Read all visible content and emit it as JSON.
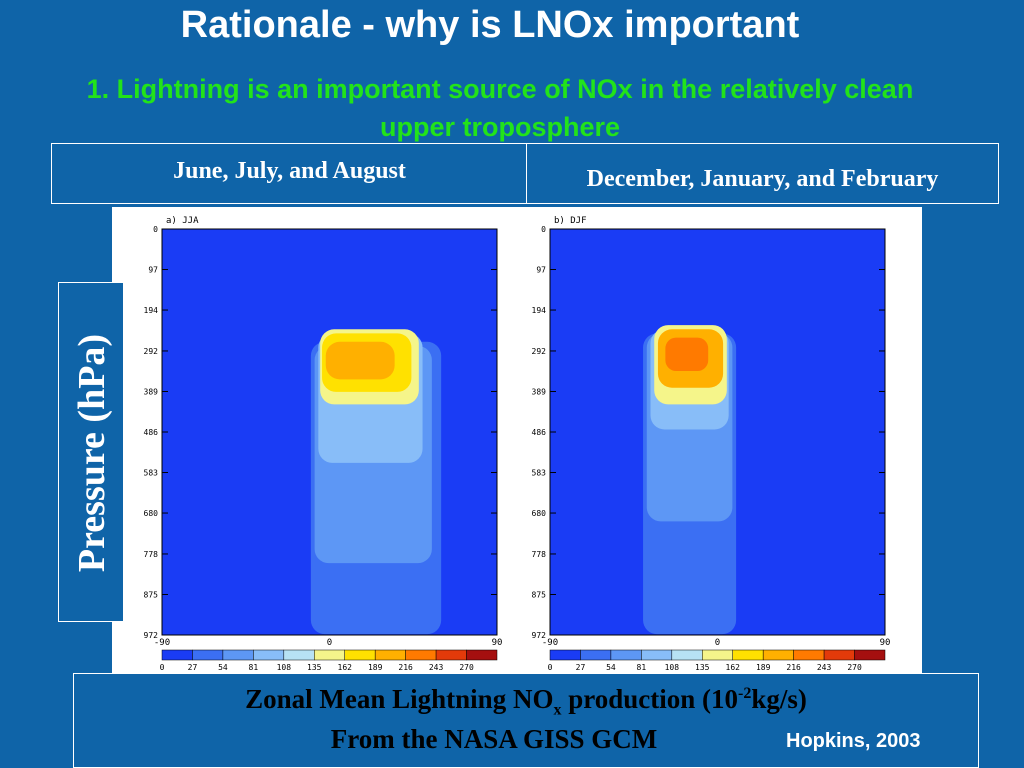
{
  "slide": {
    "title": "Rationale - why is LNOx important",
    "subtitle": "1.  Lightning is an important source of NOx in the relatively clean upper troposphere",
    "season_left": "June, July, and August",
    "season_right": "December, January, and February",
    "y_axis_label": "Pressure (hPa)",
    "caption_line1_pre": "Zonal Mean Lightning NO",
    "caption_line1_sub": "x",
    "caption_line1_mid": " production (10",
    "caption_line1_sup": "-2",
    "caption_line1_post": "kg/s)",
    "caption_line2": "From the NASA GISS GCM",
    "credit": "Hopkins, 2003"
  },
  "colors": {
    "background": "#0f64a8",
    "subtitle_green": "#22e31a",
    "plot_background": "#1a3cf5"
  },
  "chart_data": [
    {
      "type": "heatmap",
      "panel_label": "a) JJA",
      "xlim": [
        -90,
        90
      ],
      "x_ticks": [
        "-90",
        "0",
        "90"
      ],
      "y_ticks": [
        "0",
        "97",
        "194",
        "292",
        "389",
        "486",
        "583",
        "680",
        "778",
        "875",
        "972"
      ],
      "ylim": [
        0,
        972
      ],
      "colorbar_levels": [
        "0",
        "27",
        "54",
        "81",
        "108",
        "135",
        "162",
        "189",
        "216",
        "243",
        "270"
      ],
      "colorbar_colors": [
        "#1a3cf5",
        "#3b6ff3",
        "#5d97f5",
        "#88bdf8",
        "#b7e2f4",
        "#f5f58a",
        "#ffe100",
        "#ffb000",
        "#ff7a00",
        "#e33a0a",
        "#a50f0f"
      ],
      "regions": [
        {
          "lat": [
            -10,
            60
          ],
          "p": [
            270,
            970
          ],
          "value": 30
        },
        {
          "lat": [
            -8,
            55
          ],
          "p": [
            280,
            800
          ],
          "value": 60
        },
        {
          "lat": [
            -6,
            50
          ],
          "p": [
            250,
            560
          ],
          "value": 100
        },
        {
          "lat": [
            -5,
            48
          ],
          "p": [
            240,
            420
          ],
          "value": 140
        },
        {
          "lat": [
            -4,
            44
          ],
          "p": [
            250,
            390
          ],
          "value": 175
        },
        {
          "lat": [
            -2,
            35
          ],
          "p": [
            270,
            360
          ],
          "value": 200
        }
      ]
    },
    {
      "type": "heatmap",
      "panel_label": "b) DJF",
      "xlim": [
        -90,
        90
      ],
      "x_ticks": [
        "-90",
        "0",
        "90"
      ],
      "y_ticks": [
        "0",
        "97",
        "194",
        "292",
        "389",
        "486",
        "583",
        "680",
        "778",
        "875",
        "972"
      ],
      "ylim": [
        0,
        972
      ],
      "colorbar_levels": [
        "0",
        "27",
        "54",
        "81",
        "108",
        "135",
        "162",
        "189",
        "216",
        "243",
        "270"
      ],
      "colorbar_colors": [
        "#1a3cf5",
        "#3b6ff3",
        "#5d97f5",
        "#88bdf8",
        "#b7e2f4",
        "#f5f58a",
        "#ffe100",
        "#ffb000",
        "#ff7a00",
        "#e33a0a",
        "#a50f0f"
      ],
      "regions": [
        {
          "lat": [
            -40,
            10
          ],
          "p": [
            250,
            970
          ],
          "value": 30
        },
        {
          "lat": [
            -38,
            8
          ],
          "p": [
            250,
            700
          ],
          "value": 60
        },
        {
          "lat": [
            -36,
            6
          ],
          "p": [
            240,
            480
          ],
          "value": 100
        },
        {
          "lat": [
            -34,
            5
          ],
          "p": [
            230,
            420
          ],
          "value": 150
        },
        {
          "lat": [
            -32,
            3
          ],
          "p": [
            240,
            380
          ],
          "value": 200
        },
        {
          "lat": [
            -28,
            -5
          ],
          "p": [
            260,
            340
          ],
          "value": 240
        }
      ]
    }
  ]
}
